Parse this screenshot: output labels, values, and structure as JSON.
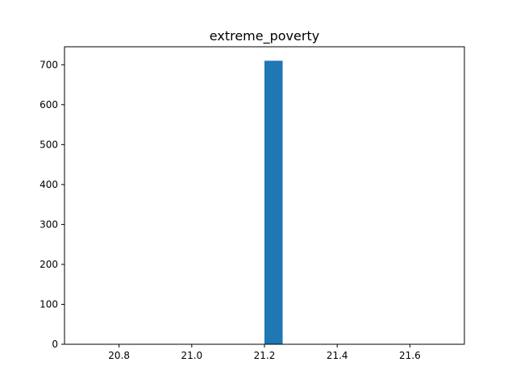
{
  "chart_data": {
    "type": "bar",
    "title": "extreme_poverty",
    "xlabel": "",
    "ylabel": "",
    "bins": [
      {
        "x0": 21.2,
        "x1": 21.25,
        "count": 710
      }
    ],
    "xlim": [
      20.65,
      21.75
    ],
    "ylim": [
      0,
      745
    ],
    "xticks": [
      20.8,
      21.0,
      21.2,
      21.4,
      21.6
    ],
    "xtick_labels": [
      "20.8",
      "21.0",
      "21.2",
      "21.4",
      "21.6"
    ],
    "yticks": [
      0,
      100,
      200,
      300,
      400,
      500,
      600,
      700
    ],
    "ytick_labels": [
      "0",
      "100",
      "200",
      "300",
      "400",
      "500",
      "600",
      "700"
    ],
    "grid": false,
    "colors": {
      "bar": "#1f77b4",
      "axes": "#000000",
      "background": "#ffffff"
    }
  }
}
